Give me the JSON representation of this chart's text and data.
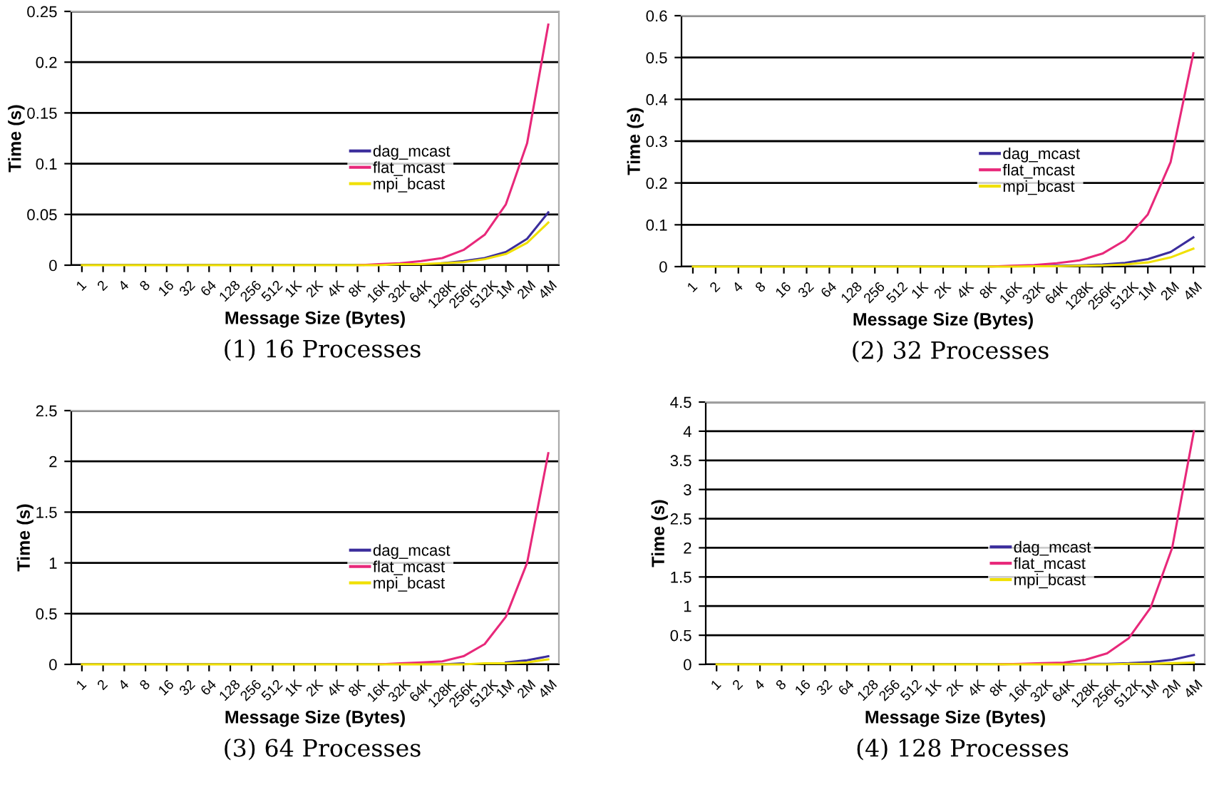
{
  "chart_data": [
    {
      "type": "line",
      "xlabel": "Message Size (Bytes)",
      "ylabel": "Time (s)",
      "annotations": [
        "(1) 16 Processes"
      ],
      "categories": [
        "1",
        "2",
        "4",
        "8",
        "16",
        "32",
        "64",
        "128",
        "256",
        "512",
        "1K",
        "2K",
        "4K",
        "8K",
        "16K",
        "32K",
        "64K",
        "128K",
        "256K",
        "512K",
        "1M",
        "2M",
        "4M"
      ],
      "ylim": [
        0,
        0.25
      ],
      "yticks": [
        0,
        0.05,
        0.1,
        0.15,
        0.2,
        0.25
      ],
      "grid": "y",
      "legend": "right",
      "marker": "none",
      "series": [
        {
          "name": "dag_mcast",
          "color": "#3b2d9c",
          "values": [
            null,
            null,
            null,
            null,
            null,
            null,
            null,
            null,
            null,
            null,
            null,
            null,
            null,
            null,
            null,
            null,
            null,
            0.002,
            0.004,
            0.007,
            0.013,
            0.026,
            0.052
          ]
        },
        {
          "name": "flat_mcast",
          "color": "#e8287a",
          "values": [
            null,
            null,
            null,
            null,
            null,
            null,
            null,
            null,
            null,
            null,
            null,
            null,
            null,
            0,
            0.001,
            0.002,
            0.004,
            0.007,
            0.015,
            0.03,
            0.06,
            0.12,
            0.237
          ]
        },
        {
          "name": "mpi_bcast",
          "color": "#f0e000",
          "values": [
            0,
            0,
            0,
            0,
            0,
            0,
            0,
            0,
            0,
            0,
            0,
            0,
            0,
            0,
            0,
            0.001,
            0.001,
            0.002,
            0.003,
            0.006,
            0.011,
            0.022,
            0.042
          ]
        }
      ]
    },
    {
      "type": "line",
      "xlabel": "Message Size (Bytes)",
      "ylabel": "Time (s)",
      "annotations": [
        "(2) 32 Processes"
      ],
      "categories": [
        "1",
        "2",
        "4",
        "8",
        "16",
        "32",
        "64",
        "128",
        "256",
        "512",
        "1K",
        "2K",
        "4K",
        "8K",
        "16K",
        "32K",
        "64K",
        "128K",
        "256K",
        "512K",
        "1M",
        "2M",
        "4M"
      ],
      "ylim": [
        0,
        0.6
      ],
      "yticks": [
        0,
        0.1,
        0.2,
        0.3,
        0.4,
        0.5,
        0.6
      ],
      "grid": "y",
      "legend": "right",
      "marker": "none",
      "series": [
        {
          "name": "dag_mcast",
          "color": "#3b2d9c",
          "values": [
            null,
            null,
            null,
            null,
            null,
            null,
            null,
            null,
            null,
            null,
            null,
            null,
            null,
            null,
            null,
            0.001,
            0.002,
            0.003,
            0.005,
            0.009,
            0.018,
            0.035,
            0.07
          ]
        },
        {
          "name": "flat_mcast",
          "color": "#e8287a",
          "values": [
            null,
            null,
            null,
            null,
            null,
            null,
            null,
            null,
            null,
            null,
            null,
            null,
            null,
            0,
            0.002,
            0.004,
            0.008,
            0.015,
            0.031,
            0.063,
            0.125,
            0.25,
            0.51
          ]
        },
        {
          "name": "mpi_bcast",
          "color": "#f0e000",
          "values": [
            0,
            0,
            0,
            0,
            0,
            0,
            0,
            0,
            0,
            0,
            0,
            0,
            0,
            0,
            0,
            0.001,
            0.001,
            0.002,
            0.003,
            0.005,
            0.01,
            0.022,
            0.043
          ]
        }
      ]
    },
    {
      "type": "line",
      "xlabel": "Message Size (Bytes)",
      "ylabel": "Time (s)",
      "annotations": [
        "(3) 64 Processes"
      ],
      "categories": [
        "1",
        "2",
        "4",
        "8",
        "16",
        "32",
        "64",
        "128",
        "256",
        "512",
        "1K",
        "2K",
        "4K",
        "8K",
        "16K",
        "32K",
        "64K",
        "128K",
        "256K",
        "512K",
        "1M",
        "2M",
        "4M"
      ],
      "ylim": [
        0,
        2.5
      ],
      "yticks": [
        0,
        0.5,
        1,
        1.5,
        2,
        2.5
      ],
      "grid": "y",
      "legend": "right",
      "marker": "none",
      "series": [
        {
          "name": "dag_mcast",
          "color": "#3b2d9c",
          "values": [
            null,
            null,
            null,
            null,
            null,
            null,
            null,
            null,
            null,
            null,
            null,
            null,
            null,
            null,
            null,
            null,
            null,
            0,
            0.01,
            null,
            0.02,
            0.04,
            0.08
          ]
        },
        {
          "name": "flat_mcast",
          "color": "#e8287a",
          "values": [
            null,
            null,
            null,
            null,
            null,
            null,
            null,
            null,
            null,
            null,
            null,
            null,
            null,
            null,
            0,
            0.01,
            0.02,
            0.03,
            0.08,
            0.2,
            0.47,
            1.0,
            2.08
          ]
        },
        {
          "name": "mpi_bcast",
          "color": "#f0e000",
          "values": [
            0,
            0,
            0,
            0,
            0,
            0,
            0,
            0,
            0,
            0,
            0,
            0,
            0,
            0,
            0,
            0,
            0,
            0,
            0,
            0.01,
            0.01,
            0.02,
            0.05
          ]
        }
      ]
    },
    {
      "type": "line",
      "xlabel": "Message Size (Bytes)",
      "ylabel": "Time (s)",
      "annotations": [
        "(4) 128 Processes"
      ],
      "categories": [
        "1",
        "2",
        "4",
        "8",
        "16",
        "32",
        "64",
        "128",
        "256",
        "512",
        "1K",
        "2K",
        "4K",
        "8K",
        "16K",
        "32K",
        "64K",
        "128K",
        "256K",
        "512K",
        "1M",
        "2M",
        "4M"
      ],
      "ylim": [
        0,
        4.5
      ],
      "yticks": [
        0,
        0.5,
        1,
        1.5,
        2,
        2.5,
        3,
        3.5,
        4,
        4.5
      ],
      "grid": "y",
      "legend": "right",
      "marker": "none",
      "series": [
        {
          "name": "dag_mcast",
          "color": "#3b2d9c",
          "values": [
            null,
            null,
            null,
            null,
            null,
            null,
            null,
            null,
            null,
            null,
            null,
            null,
            null,
            null,
            null,
            null,
            0,
            0.01,
            0.01,
            0.02,
            0.04,
            0.08,
            0.16
          ]
        },
        {
          "name": "flat_mcast",
          "color": "#e8287a",
          "values": [
            null,
            null,
            null,
            null,
            null,
            null,
            null,
            null,
            null,
            null,
            null,
            null,
            null,
            0,
            0.01,
            0.02,
            0.03,
            0.08,
            0.19,
            0.45,
            0.97,
            2.0,
            4.0
          ]
        },
        {
          "name": "mpi_bcast",
          "color": "#f0e000",
          "values": [
            0,
            0,
            0,
            0,
            0,
            0,
            0,
            0,
            0,
            0,
            0,
            0,
            0,
            0,
            0,
            0,
            0,
            0,
            0,
            0.01,
            0.01,
            0.02,
            0.03
          ]
        }
      ]
    }
  ]
}
